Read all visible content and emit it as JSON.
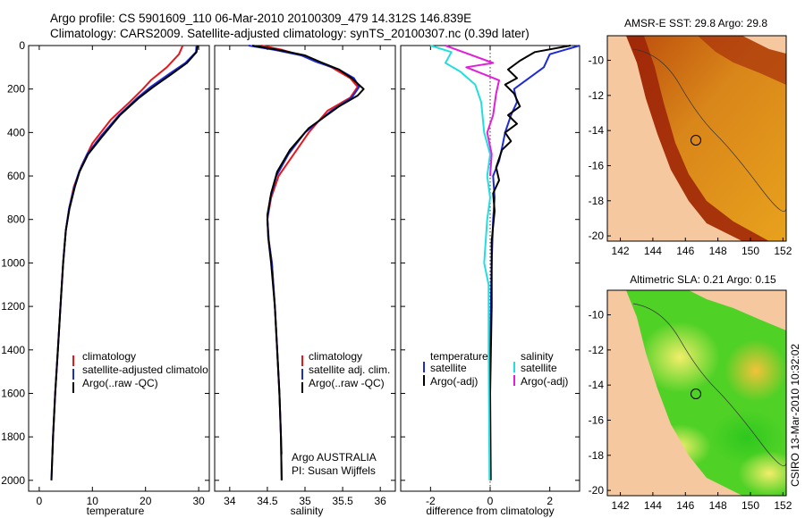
{
  "header": {
    "line1": "Argo profile: CS 5901609_110 06-Mar-2010 20100309_479 14.312S 146.839E",
    "line2": "Climatology: CARS2009. Satellite-adjusted climatology: synTS_20100307.nc (0.39d later)"
  },
  "colors": {
    "climatology": "#e8161a",
    "satellite": "#1d2bd6",
    "argo": "#000000",
    "sal_satellite": "#22dede",
    "sal_argo": "#e020d8",
    "land": "#f6c8a0"
  },
  "chart_data": [
    {
      "type": "line",
      "name": "temperature-panel",
      "xlabel": "temperature",
      "ylabel": "",
      "xlim": [
        -2,
        32
      ],
      "ylim": [
        2050,
        0
      ],
      "xticks": [
        0,
        10,
        20,
        30
      ],
      "yticks": [
        0,
        200,
        400,
        600,
        800,
        1000,
        1200,
        1400,
        1600,
        1800,
        2000
      ],
      "legend": {
        "position": "lower-right",
        "entries": [
          "climatology",
          "satellite-adjusted climatolo",
          "Argo(..raw -QC)"
        ]
      },
      "series": [
        {
          "name": "climatology",
          "color": "#e8161a",
          "points": [
            [
              27,
              0
            ],
            [
              26.3,
              40
            ],
            [
              24,
              100
            ],
            [
              21,
              160
            ],
            [
              19.5,
              200
            ],
            [
              17,
              260
            ],
            [
              13.5,
              340
            ],
            [
              10,
              450
            ],
            [
              8,
              550
            ],
            [
              6.5,
              650
            ],
            [
              5.6,
              750
            ],
            [
              5,
              850
            ],
            [
              4.5,
              1000
            ],
            [
              4,
              1200
            ],
            [
              3.5,
              1400
            ],
            [
              3.0,
              1600
            ],
            [
              2.6,
              1800
            ],
            [
              2.5,
              1880
            ]
          ]
        },
        {
          "name": "satellite-adjusted climatology",
          "color": "#1d2bd6",
          "points": [
            [
              29.6,
              0
            ],
            [
              29.5,
              30
            ],
            [
              27.5,
              80
            ],
            [
              24.5,
              130
            ],
            [
              21,
              190
            ],
            [
              18.5,
              240
            ],
            [
              15,
              320
            ],
            [
              11.5,
              420
            ],
            [
              9,
              500
            ],
            [
              7.5,
              580
            ],
            [
              6.6,
              650
            ],
            [
              5.6,
              750
            ],
            [
              5,
              850
            ],
            [
              4.5,
              1000
            ],
            [
              4,
              1200
            ],
            [
              3.5,
              1400
            ],
            [
              3.0,
              1600
            ],
            [
              2.6,
              1800
            ],
            [
              2.3,
              2000
            ]
          ]
        },
        {
          "name": "Argo(..raw -QC)",
          "color": "#000000",
          "points": [
            [
              29.8,
              0
            ],
            [
              29.6,
              30
            ],
            [
              27.8,
              80
            ],
            [
              25,
              130
            ],
            [
              21.5,
              190
            ],
            [
              18.8,
              240
            ],
            [
              15.2,
              320
            ],
            [
              11.8,
              420
            ],
            [
              9.2,
              500
            ],
            [
              7.6,
              580
            ],
            [
              6.7,
              650
            ],
            [
              5.7,
              750
            ],
            [
              5,
              850
            ],
            [
              4.5,
              1000
            ],
            [
              4,
              1200
            ],
            [
              3.5,
              1400
            ],
            [
              3.0,
              1600
            ],
            [
              2.6,
              1800
            ],
            [
              2.3,
              2000
            ]
          ]
        }
      ]
    },
    {
      "type": "line",
      "name": "salinity-panel",
      "xlabel": "salinity",
      "ylabel": "",
      "xlim": [
        33.8,
        36.2
      ],
      "ylim": [
        2050,
        0
      ],
      "xticks": [
        34,
        34.5,
        35,
        35.5,
        36
      ],
      "xtick_labels": [
        "34",
        "34.5",
        "35",
        "35.5",
        "36"
      ],
      "legend": {
        "position": "lower-right",
        "entries": [
          "climatology",
          "satellite adj. clim.",
          "Argo(..raw -QC)"
        ]
      },
      "annotation": [
        "Argo AUSTRALIA",
        "PI: Susan Wijffels"
      ],
      "series": [
        {
          "name": "climatology",
          "color": "#e8161a",
          "points": [
            [
              34.42,
              0
            ],
            [
              34.7,
              20
            ],
            [
              35.0,
              50
            ],
            [
              35.35,
              100
            ],
            [
              35.6,
              150
            ],
            [
              35.7,
              190
            ],
            [
              35.6,
              240
            ],
            [
              35.3,
              300
            ],
            [
              35.05,
              400
            ],
            [
              34.85,
              500
            ],
            [
              34.65,
              600
            ],
            [
              34.55,
              700
            ],
            [
              34.5,
              800
            ],
            [
              34.52,
              900
            ],
            [
              34.56,
              1000
            ],
            [
              34.6,
              1200
            ],
            [
              34.63,
              1400
            ],
            [
              34.66,
              1600
            ],
            [
              34.68,
              1800
            ],
            [
              34.69,
              1880
            ]
          ]
        },
        {
          "name": "satellite adj. clim.",
          "color": "#1d2bd6",
          "points": [
            [
              34.25,
              0
            ],
            [
              34.6,
              20
            ],
            [
              34.95,
              45
            ],
            [
              35.15,
              75
            ],
            [
              35.45,
              110
            ],
            [
              35.65,
              150
            ],
            [
              35.72,
              190
            ],
            [
              35.62,
              240
            ],
            [
              35.35,
              300
            ],
            [
              35.0,
              400
            ],
            [
              34.78,
              500
            ],
            [
              34.62,
              600
            ],
            [
              34.54,
              700
            ],
            [
              34.5,
              800
            ],
            [
              34.52,
              900
            ],
            [
              34.56,
              1000
            ],
            [
              34.6,
              1200
            ],
            [
              34.63,
              1400
            ],
            [
              34.66,
              1600
            ],
            [
              34.68,
              1800
            ],
            [
              34.69,
              2000
            ]
          ]
        },
        {
          "name": "Argo(..raw -QC)",
          "color": "#000000",
          "points": [
            [
              34.3,
              0
            ],
            [
              34.65,
              20
            ],
            [
              35.0,
              45
            ],
            [
              35.2,
              75
            ],
            [
              35.45,
              110
            ],
            [
              35.62,
              150
            ],
            [
              35.78,
              200
            ],
            [
              35.7,
              230
            ],
            [
              35.45,
              280
            ],
            [
              35.05,
              380
            ],
            [
              34.8,
              480
            ],
            [
              34.63,
              580
            ],
            [
              34.55,
              680
            ],
            [
              34.5,
              780
            ],
            [
              34.51,
              880
            ],
            [
              34.55,
              1000
            ],
            [
              34.6,
              1200
            ],
            [
              34.63,
              1400
            ],
            [
              34.66,
              1600
            ],
            [
              34.68,
              1800
            ],
            [
              34.69,
              2000
            ]
          ]
        }
      ]
    },
    {
      "type": "line",
      "name": "difference-panel",
      "xlabel": "difference from climatology",
      "ylabel": "",
      "xlim": [
        -3,
        3
      ],
      "ylim": [
        2050,
        0
      ],
      "xticks": [
        -2,
        0,
        2
      ],
      "legend": {
        "position": "lower",
        "columns": [
          [
            "temperature",
            "satellite",
            "Argo(-adj)"
          ],
          [
            "salinity",
            "satellite",
            "Argo(-adj)"
          ]
        ]
      },
      "series": [
        {
          "name": "temperature satellite",
          "color": "#1d2bd6",
          "points": [
            [
              3.0,
              0
            ],
            [
              2.0,
              40
            ],
            [
              1.8,
              100
            ],
            [
              1.2,
              160
            ],
            [
              0.8,
              200
            ],
            [
              0.9,
              260
            ],
            [
              0.7,
              320
            ],
            [
              0.5,
              400
            ],
            [
              0.4,
              470
            ],
            [
              0.3,
              530
            ],
            [
              0.1,
              600
            ],
            [
              0.15,
              700
            ],
            [
              0.1,
              800
            ],
            [
              0.05,
              1000
            ],
            [
              0.0,
              1400
            ],
            [
              0.0,
              2000
            ]
          ]
        },
        {
          "name": "temperature Argo(-adj)",
          "color": "#000000",
          "points": [
            [
              2.7,
              0
            ],
            [
              1.5,
              30
            ],
            [
              1.0,
              70
            ],
            [
              0.6,
              110
            ],
            [
              0.9,
              150
            ],
            [
              0.5,
              180
            ],
            [
              0.8,
              220
            ],
            [
              1.0,
              280
            ],
            [
              0.6,
              320
            ],
            [
              0.9,
              360
            ],
            [
              0.5,
              400
            ],
            [
              0.7,
              440
            ],
            [
              0.4,
              480
            ],
            [
              0.2,
              560
            ],
            [
              0.3,
              620
            ],
            [
              0.1,
              680
            ],
            [
              0.15,
              760
            ],
            [
              0.05,
              900
            ],
            [
              0.05,
              1200
            ],
            [
              0.0,
              1600
            ],
            [
              0.02,
              2000
            ]
          ]
        },
        {
          "name": "salinity satellite",
          "color": "#22dede",
          "points": [
            [
              -2.0,
              0
            ],
            [
              -1.3,
              30
            ],
            [
              -1.5,
              80
            ],
            [
              -1.0,
              120
            ],
            [
              -0.5,
              180
            ],
            [
              -0.3,
              260
            ],
            [
              -0.2,
              400
            ],
            [
              0.0,
              500
            ],
            [
              -0.1,
              600
            ],
            [
              0.0,
              700
            ],
            [
              -0.1,
              800
            ],
            [
              -0.15,
              900
            ],
            [
              -0.2,
              1000
            ],
            [
              -0.05,
              1100
            ],
            [
              -0.05,
              1400
            ],
            [
              -0.02,
              2000
            ]
          ]
        },
        {
          "name": "salinity Argo(-adj)",
          "color": "#e020d8",
          "points": [
            [
              -1.5,
              0
            ],
            [
              0.1,
              80
            ],
            [
              -0.8,
              100
            ],
            [
              0.3,
              160
            ],
            [
              0.2,
              220
            ],
            [
              0.1,
              320
            ],
            [
              -0.1,
              400
            ],
            [
              0.05,
              500
            ],
            [
              0.0,
              600
            ]
          ]
        }
      ]
    }
  ],
  "maps": {
    "top": {
      "title": "AMSR-E SST: 29.8 Argo: 29.8",
      "xticks": [
        "142",
        "144",
        "146",
        "148",
        "150",
        "152"
      ],
      "yticks": [
        "-10",
        "-12",
        "-14",
        "-16",
        "-18",
        "-20"
      ]
    },
    "bottom": {
      "title": "Altimetric SLA: 0.21 Argo: 0.15",
      "xticks": [
        "142",
        "144",
        "146",
        "148",
        "150",
        "152"
      ],
      "yticks": [
        "-10",
        "-12",
        "-14",
        "-16",
        "-18",
        "-20"
      ]
    }
  },
  "footer": {
    "credit": "CSIRO 13-Mar-2010 10:32:02"
  }
}
